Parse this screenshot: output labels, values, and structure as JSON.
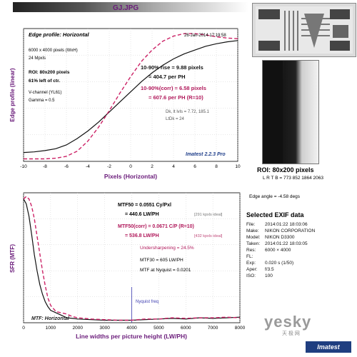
{
  "file_name": "GJ.JPG",
  "chart_data": [
    {
      "type": "line",
      "title": "Edge profile: Horizontal",
      "timestamp": "26-Jan-2014 17:19:58",
      "xlabel": "Pixels (Horizontal)",
      "ylabel": "Edge profile (linear)",
      "xlim": [
        -10,
        10
      ],
      "ylim": [
        0,
        1.05
      ],
      "xticks": [
        -10,
        -8,
        -6,
        -4,
        -2,
        0,
        2,
        4,
        6,
        8,
        10
      ],
      "grid": true,
      "series": [
        {
          "color": "#111111",
          "style": "solid",
          "x": [
            -10,
            -9,
            -8,
            -7,
            -6,
            -5,
            -4,
            -3,
            -2,
            -1,
            0,
            1,
            2,
            3,
            4,
            5,
            6,
            7,
            8,
            9,
            10
          ],
          "y": [
            0.07,
            0.075,
            0.085,
            0.1,
            0.13,
            0.18,
            0.24,
            0.31,
            0.39,
            0.47,
            0.55,
            0.63,
            0.7,
            0.76,
            0.81,
            0.85,
            0.88,
            0.91,
            0.93,
            0.945,
            0.955
          ]
        },
        {
          "color": "#cc2266",
          "style": "dashed",
          "x": [
            -10,
            -9,
            -8,
            -7,
            -6,
            -5,
            -4,
            -3,
            -2,
            -1,
            0,
            1,
            2,
            3,
            4,
            5,
            6,
            7,
            8,
            9,
            10
          ],
          "y": [
            0.02,
            0.02,
            0.02,
            0.025,
            0.04,
            0.08,
            0.16,
            0.27,
            0.4,
            0.54,
            0.67,
            0.79,
            0.88,
            0.95,
            0.99,
            1.01,
            1.01,
            1.0,
            0.985,
            0.975,
            0.97
          ]
        }
      ],
      "info_lines": [
        "6000 x 4000 pixels (WxH)",
        "24 Mpxls",
        "",
        "ROI: 80x200 pixels",
        "61% left of ctr.",
        "",
        "V-channel  (YL61)",
        "Gamma = 0.5"
      ],
      "rise_lines": [
        "10-90% rise = 9.88 pixels",
        "= 404.7 per PH"
      ],
      "rise_corr_lines": [
        "10-90%(corr) = 6.58 pixels",
        "= 607.6 per PH  (R=10)"
      ],
      "levels_lines": [
        "Dk, lt lvls = 7.72, 185.1",
        "LtDk = 24"
      ],
      "brand": "Imatest 2.2.3 Pro"
    },
    {
      "type": "line",
      "title": "MTF: Horizontal",
      "xlabel": "Line widths per picture height (LW/PH)",
      "ylabel": "SFR (MTF)",
      "xlim": [
        0,
        8000
      ],
      "ylim": [
        0,
        1.05
      ],
      "xticks": [
        0,
        1000,
        2000,
        3000,
        4000,
        5000,
        6000,
        7000,
        8000
      ],
      "grid": true,
      "nyquist": {
        "x": 4000,
        "label": "Nyquist freq"
      },
      "series": [
        {
          "color": "#111111",
          "style": "solid",
          "x": [
            0,
            100,
            200,
            300,
            400,
            500,
            600,
            700,
            800,
            900,
            1000,
            1200,
            1400,
            1600,
            1800,
            2000,
            2500,
            3000,
            3500,
            4000,
            4500,
            5000,
            5500,
            6000,
            6500,
            7000,
            7500,
            8000
          ],
          "y": [
            1.0,
            0.96,
            0.86,
            0.71,
            0.55,
            0.42,
            0.31,
            0.23,
            0.17,
            0.13,
            0.1,
            0.08,
            0.06,
            0.04,
            0.035,
            0.03,
            0.025,
            0.02,
            0.02,
            0.02,
            0.025,
            0.03,
            0.035,
            0.03,
            0.04,
            0.035,
            0.04,
            0.045
          ]
        },
        {
          "color": "#cc2266",
          "style": "dashed",
          "x": [
            0,
            100,
            200,
            300,
            400,
            500,
            600,
            700,
            800,
            900,
            1000,
            1200,
            1400,
            1600,
            1800,
            2000,
            2500,
            3000,
            3500,
            4000,
            4500,
            5000,
            5500,
            6000,
            6500,
            7000,
            7500,
            8000
          ],
          "y": [
            1.0,
            1.02,
            1.0,
            0.94,
            0.84,
            0.7,
            0.56,
            0.42,
            0.3,
            0.2,
            0.14,
            0.09,
            0.08,
            0.07,
            0.05,
            0.04,
            0.03,
            0.025,
            0.02,
            0.02,
            0.03,
            0.03,
            0.04,
            0.035,
            0.04,
            0.04,
            0.045,
            0.04
          ]
        }
      ],
      "mtf50_lines": [
        "MTF50 = 0.0551 Cy/Pxl",
        "= 440.6 LW/PH"
      ],
      "mtf50_ideal": "[291 kpxls ideal]",
      "mtf50corr_lines": [
        "MTF50(corr) = 0.0671 C/P  (R=10)",
        "= 536.8 LW/PH"
      ],
      "mtf50corr_ideal": "[432 kpxls ideal]",
      "undersharpening": "Undersharpening = 24.5%",
      "mtf30": "MTF30 = 605 LW/PH",
      "mtf_nyquist": "MTF at Nyquist = 0.0201"
    }
  ],
  "roi": {
    "label": "ROI: 80x200 pixels",
    "coords": "L R T B = 773 852  1864 2063"
  },
  "edge_angle": "Edge angle = -4.58 degs",
  "exif": {
    "title": "Selected EXIF data",
    "rows": [
      {
        "k": "File:",
        "v": "2014:01:22 18:03:06"
      },
      {
        "k": "Make:",
        "v": "NIKON CORPORATION"
      },
      {
        "k": "Model:",
        "v": "NIKON D3300"
      },
      {
        "k": "Taken:",
        "v": "2014:01:22 18:03:05"
      },
      {
        "k": "Res:",
        "v": "6000 × 4000"
      },
      {
        "k": "FL:",
        "v": ""
      },
      {
        "k": "Exp:",
        "v": "0.020 s  (1/50)"
      },
      {
        "k": "Aper:",
        "v": "f/3.5"
      },
      {
        "k": "ISO:",
        "v": "100"
      }
    ]
  },
  "watermark": "yesky",
  "watermark_sub": "天 极 网",
  "logo": "Imatest"
}
